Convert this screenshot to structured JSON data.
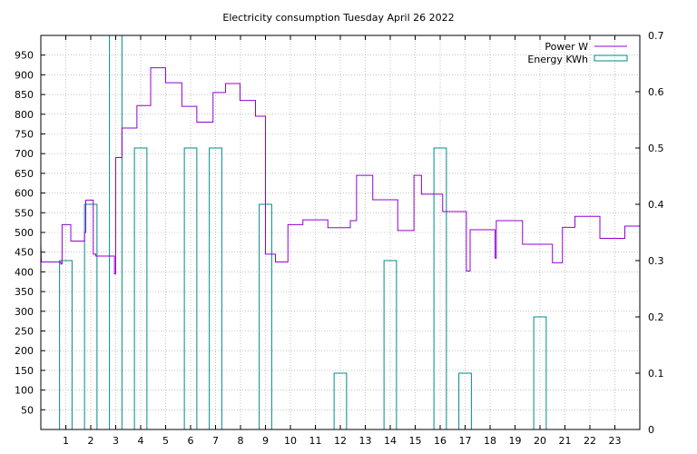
{
  "chart_data": {
    "type": "line",
    "title": "Electricity consumption Tuesday April 26 2022",
    "xlabel": "",
    "ylabel": "",
    "xlim": [
      0,
      24
    ],
    "ylim": [
      0,
      1000
    ],
    "y2lim": [
      0,
      0.7
    ],
    "grid": true,
    "legend_position": "top-right",
    "x_ticks": [
      1,
      2,
      3,
      4,
      5,
      6,
      7,
      8,
      9,
      10,
      11,
      12,
      13,
      14,
      15,
      16,
      17,
      18,
      19,
      20,
      21,
      22,
      23
    ],
    "y_ticks": [
      50,
      100,
      150,
      200,
      250,
      300,
      350,
      400,
      450,
      500,
      550,
      600,
      650,
      700,
      750,
      800,
      850,
      900,
      950
    ],
    "y2_ticks": [
      0,
      0.1,
      0.2,
      0.3,
      0.4,
      0.5,
      0.6,
      0.7
    ],
    "series": [
      {
        "name": "Power W",
        "axis": "left",
        "style": "step",
        "color": "#9400d3",
        "points": [
          [
            0.0,
            470
          ],
          [
            0.02,
            425
          ],
          [
            0.8,
            425
          ],
          [
            0.8,
            420
          ],
          [
            0.85,
            420
          ],
          [
            0.85,
            520
          ],
          [
            1.2,
            520
          ],
          [
            1.2,
            478
          ],
          [
            1.75,
            478
          ],
          [
            1.75,
            500
          ],
          [
            1.8,
            500
          ],
          [
            1.8,
            582
          ],
          [
            2.1,
            582
          ],
          [
            2.1,
            445
          ],
          [
            2.2,
            445
          ],
          [
            2.2,
            440
          ],
          [
            2.95,
            440
          ],
          [
            2.95,
            395
          ],
          [
            3.0,
            395
          ],
          [
            3.0,
            690
          ],
          [
            3.25,
            690
          ],
          [
            3.25,
            765
          ],
          [
            3.85,
            765
          ],
          [
            3.85,
            822
          ],
          [
            4.4,
            822
          ],
          [
            4.4,
            918
          ],
          [
            5.0,
            918
          ],
          [
            5.0,
            880
          ],
          [
            5.65,
            880
          ],
          [
            5.65,
            820
          ],
          [
            6.25,
            820
          ],
          [
            6.25,
            780
          ],
          [
            6.9,
            780
          ],
          [
            6.9,
            855
          ],
          [
            7.4,
            855
          ],
          [
            7.4,
            878
          ],
          [
            7.98,
            878
          ],
          [
            7.98,
            835
          ],
          [
            8.6,
            835
          ],
          [
            8.6,
            795
          ],
          [
            9.0,
            795
          ],
          [
            9.0,
            445
          ],
          [
            9.4,
            445
          ],
          [
            9.4,
            425
          ],
          [
            9.9,
            425
          ],
          [
            9.9,
            520
          ],
          [
            10.5,
            520
          ],
          [
            10.5,
            532
          ],
          [
            11.5,
            532
          ],
          [
            11.5,
            512
          ],
          [
            12.4,
            512
          ],
          [
            12.4,
            530
          ],
          [
            12.65,
            530
          ],
          [
            12.65,
            645
          ],
          [
            13.3,
            645
          ],
          [
            13.3,
            583
          ],
          [
            14.3,
            583
          ],
          [
            14.3,
            505
          ],
          [
            14.95,
            505
          ],
          [
            14.95,
            645
          ],
          [
            15.25,
            645
          ],
          [
            15.25,
            597
          ],
          [
            16.1,
            597
          ],
          [
            16.1,
            553
          ],
          [
            17.05,
            553
          ],
          [
            17.05,
            402
          ],
          [
            17.2,
            402
          ],
          [
            17.2,
            507
          ],
          [
            18.2,
            507
          ],
          [
            18.2,
            435
          ],
          [
            18.25,
            435
          ],
          [
            18.25,
            530
          ],
          [
            19.3,
            530
          ],
          [
            19.3,
            470
          ],
          [
            20.5,
            470
          ],
          [
            20.5,
            423
          ],
          [
            20.9,
            423
          ],
          [
            20.9,
            513
          ],
          [
            21.4,
            513
          ],
          [
            21.4,
            541
          ],
          [
            22.4,
            541
          ],
          [
            22.4,
            485
          ],
          [
            23.4,
            485
          ],
          [
            23.4,
            516
          ],
          [
            24.0,
            516
          ]
        ]
      },
      {
        "name": "Energy KWh",
        "axis": "right",
        "style": "boxes",
        "color": "#008b8b",
        "box_width": 0.5,
        "x": [
          1,
          2,
          3,
          4,
          6,
          7,
          9,
          12,
          14,
          16,
          17,
          20
        ],
        "values": [
          0.3,
          0.4,
          0.7,
          0.5,
          0.5,
          0.5,
          0.4,
          0.1,
          0.3,
          0.5,
          0.1,
          0.2
        ]
      }
    ]
  }
}
